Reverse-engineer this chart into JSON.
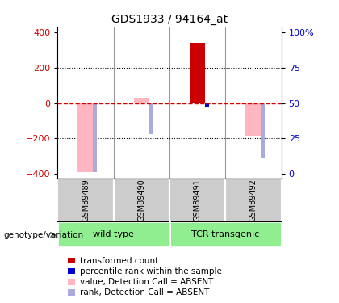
{
  "title": "GDS1933 / 94164_at",
  "samples": [
    "GSM89489",
    "GSM89490",
    "GSM89491",
    "GSM89492"
  ],
  "ylim": [
    -430,
    430
  ],
  "yticks_left": [
    -400,
    -200,
    0,
    200,
    400
  ],
  "hlines": [
    200,
    -200
  ],
  "bar_color_present": "#cc0000",
  "bar_color_absent": "#FFB6C1",
  "rank_color_present": "#0000cc",
  "rank_color_absent": "#aaaadd",
  "transformed_counts": [
    null,
    null,
    340,
    null
  ],
  "transformed_counts_absent": [
    -390,
    30,
    null,
    -185
  ],
  "percentile_ranks_present": [
    null,
    null,
    -20,
    null
  ],
  "percentile_ranks_absent": [
    -390,
    -175,
    null,
    -310
  ],
  "bar_width": 0.28,
  "rank_bar_width": 0.08,
  "legend_items": [
    {
      "color": "#cc0000",
      "label": "transformed count"
    },
    {
      "color": "#0000cc",
      "label": "percentile rank within the sample"
    },
    {
      "color": "#FFB6C1",
      "label": "value, Detection Call = ABSENT"
    },
    {
      "color": "#aaaadd",
      "label": "rank, Detection Call = ABSENT"
    }
  ],
  "zero_line_color": "#cc0000",
  "gray_bg": "#cccccc",
  "group_row_color": "#90EE90",
  "label_color": "#cc0000",
  "right_label_color": "#0000cc",
  "right_tick_vals": [
    -400,
    -200,
    0,
    200,
    400
  ],
  "right_tick_labels": [
    "0",
    "25",
    "50",
    "75",
    "100%"
  ]
}
